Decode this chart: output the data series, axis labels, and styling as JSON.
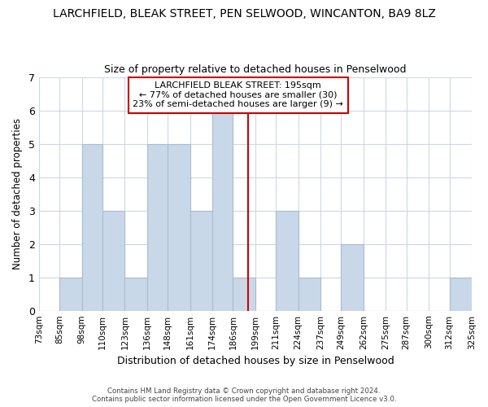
{
  "title": "LARCHFIELD, BLEAK STREET, PEN SELWOOD, WINCANTON, BA9 8LZ",
  "subtitle": "Size of property relative to detached houses in Penselwood",
  "xlabel": "Distribution of detached houses by size in Penselwood",
  "ylabel": "Number of detached properties",
  "bins": [
    73,
    85,
    98,
    110,
    123,
    136,
    148,
    161,
    174,
    186,
    199,
    211,
    224,
    237,
    249,
    262,
    275,
    287,
    300,
    312,
    325
  ],
  "bin_labels": [
    "73sqm",
    "85sqm",
    "98sqm",
    "110sqm",
    "123sqm",
    "136sqm",
    "148sqm",
    "161sqm",
    "174sqm",
    "186sqm",
    "199sqm",
    "211sqm",
    "224sqm",
    "237sqm",
    "249sqm",
    "262sqm",
    "275sqm",
    "287sqm",
    "300sqm",
    "312sqm",
    "325sqm"
  ],
  "counts": [
    0,
    1,
    5,
    3,
    1,
    5,
    5,
    3,
    6,
    1,
    0,
    3,
    1,
    0,
    2,
    0,
    0,
    0,
    0,
    1
  ],
  "bar_color": "#c8d8e8",
  "bar_edge_color": "#aabccc",
  "vline_x": 195,
  "vline_color": "#cc0000",
  "annotation_text": "LARCHFIELD BLEAK STREET: 195sqm\n← 77% of detached houses are smaller (30)\n23% of semi-detached houses are larger (9) →",
  "annotation_box_edge": "#cc0000",
  "ylim": [
    0,
    7
  ],
  "yticks": [
    0,
    1,
    2,
    3,
    4,
    5,
    6,
    7
  ],
  "footer_text": "Contains HM Land Registry data © Crown copyright and database right 2024.\nContains public sector information licensed under the Open Government Licence v3.0.",
  "bg_color": "#ffffff",
  "grid_color": "#ccd8e4",
  "title_fontsize": 10,
  "subtitle_fontsize": 9
}
